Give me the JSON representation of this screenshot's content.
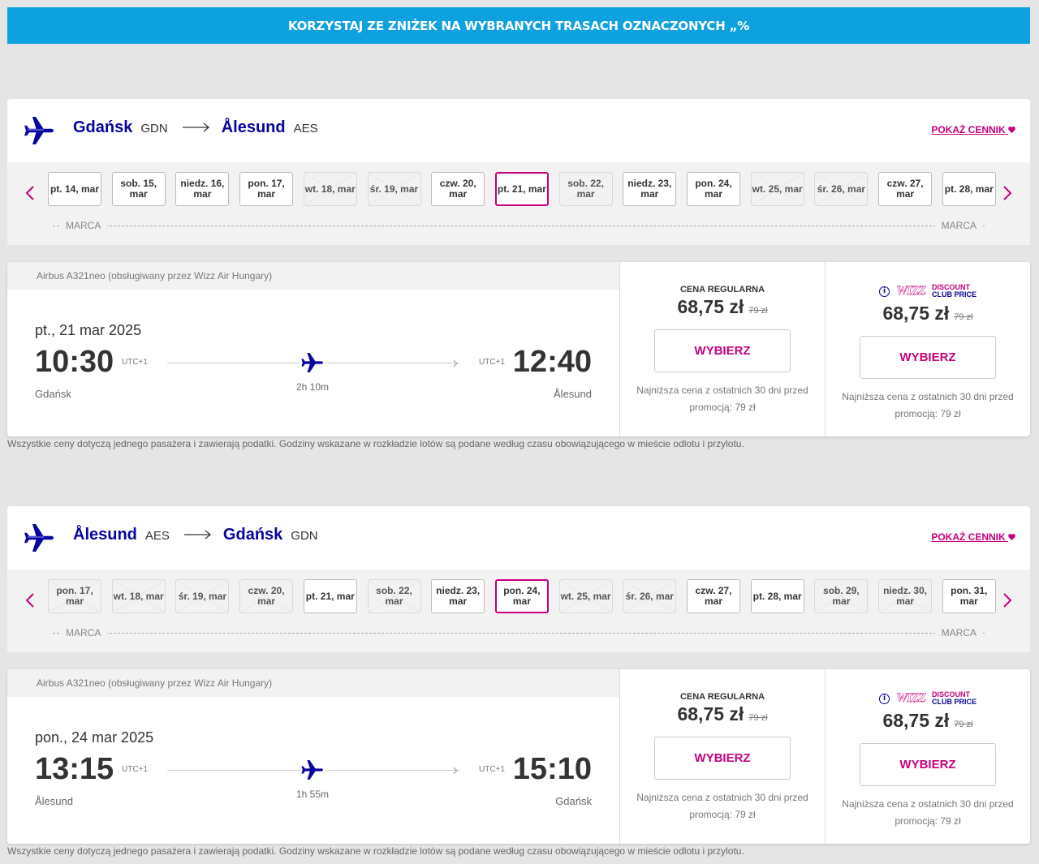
{
  "banner": {
    "text": "KORZYSTAJ ZE ZNIŻEK NA WYBRANYCH TRASACH OZNACZONYCH „%"
  },
  "routes": [
    {
      "origin_city": "Gdańsk",
      "origin_code": "GDN",
      "dest_city": "Ålesund",
      "dest_code": "AES",
      "fare_link": "POKAŻ CENNIK",
      "month_label_left": "MARCA",
      "month_label_right": "MARCA",
      "dates": [
        {
          "label": "pt. 14, mar",
          "state": "normal"
        },
        {
          "label": "sob. 15, mar",
          "state": "normal"
        },
        {
          "label": "niedz. 16, mar",
          "state": "normal"
        },
        {
          "label": "pon. 17, mar",
          "state": "normal"
        },
        {
          "label": "wt. 18, mar",
          "state": "disabled"
        },
        {
          "label": "śr. 19, mar",
          "state": "disabled"
        },
        {
          "label": "czw. 20, mar",
          "state": "normal"
        },
        {
          "label": "pt. 21, mar",
          "state": "selected"
        },
        {
          "label": "sob. 22, mar",
          "state": "disabled"
        },
        {
          "label": "niedz. 23, mar",
          "state": "normal"
        },
        {
          "label": "pon. 24, mar",
          "state": "normal"
        },
        {
          "label": "wt. 25, mar",
          "state": "disabled"
        },
        {
          "label": "śr. 26, mar",
          "state": "disabled"
        },
        {
          "label": "czw. 27, mar",
          "state": "normal"
        },
        {
          "label": "pt. 28, mar",
          "state": "normal"
        }
      ],
      "flight": {
        "aircraft": "Airbus A321neo (obsługiwany przez Wizz Air Hungary)",
        "date": "pt., 21 mar 2025",
        "dep_time": "10:30",
        "arr_time": "12:40",
        "dep_tz": "UTC+1",
        "arr_tz": "UTC+1",
        "duration": "2h 10m",
        "dep_city": "Gdańsk",
        "arr_city": "Ålesund",
        "regular_label": "CENA REGULARNA",
        "regular_price": "68,75 zł",
        "regular_old": "79 zł",
        "club_price": "68,75 zł",
        "club_old": "79 zł",
        "select_label": "WYBIERZ",
        "lowest_note": "Najniższa cena z ostatnich 30 dni przed promocją: 79 zł"
      },
      "footnote": "Wszystkie ceny dotyczą jednego pasażera i zawierają podatki. Godziny wskazane w rozkładzie lotów są podane według czasu obowiązującego w mieście odlotu i przylotu."
    },
    {
      "origin_city": "Ålesund",
      "origin_code": "AES",
      "dest_city": "Gdańsk",
      "dest_code": "GDN",
      "fare_link": "POKAŻ CENNIK",
      "month_label_left": "MARCA",
      "month_label_right": "MARCA",
      "dates": [
        {
          "label": "pon. 17, mar",
          "state": "disabled"
        },
        {
          "label": "wt. 18, mar",
          "state": "disabled"
        },
        {
          "label": "śr. 19, mar",
          "state": "disabled"
        },
        {
          "label": "czw. 20, mar",
          "state": "disabled"
        },
        {
          "label": "pt. 21, mar",
          "state": "normal"
        },
        {
          "label": "sob. 22, mar",
          "state": "disabled"
        },
        {
          "label": "niedz. 23, mar",
          "state": "normal"
        },
        {
          "label": "pon. 24, mar",
          "state": "selected"
        },
        {
          "label": "wt. 25, mar",
          "state": "disabled"
        },
        {
          "label": "śr. 26, mar",
          "state": "disabled"
        },
        {
          "label": "czw. 27, mar",
          "state": "normal"
        },
        {
          "label": "pt. 28, mar",
          "state": "normal"
        },
        {
          "label": "sob. 29, mar",
          "state": "disabled"
        },
        {
          "label": "niedz. 30, mar",
          "state": "disabled"
        },
        {
          "label": "pon. 31, mar",
          "state": "normal"
        }
      ],
      "flight": {
        "aircraft": "Airbus A321neo (obsługiwany przez Wizz Air Hungary)",
        "date": "pon., 24 mar 2025",
        "dep_time": "13:15",
        "arr_time": "15:10",
        "dep_tz": "UTC+1",
        "arr_tz": "UTC+1",
        "duration": "1h 55m",
        "dep_city": "Ålesund",
        "arr_city": "Gdańsk",
        "regular_label": "CENA REGULARNA",
        "regular_price": "68,75 zł",
        "regular_old": "79 zł",
        "club_price": "68,75 zł",
        "club_old": "79 zł",
        "select_label": "WYBIERZ",
        "lowest_note": "Najniższa cena z ostatnich 30 dni przed promocją: 79 zł"
      },
      "footnote": "Wszystkie ceny dotyczą jednego pasażera i zawierają podatki. Godziny wskazane w rozkładzie lotów są podane według czasu obowiązującego w mieście odlotu i przylotu."
    }
  ],
  "club": {
    "wizz": "WIZZ",
    "line1": "DISCOUNT",
    "line2": "CLUB PRICE",
    "info": "i"
  },
  "icons": {
    "plane": "plane-icon",
    "prev": "chevron-left-icon",
    "next": "chevron-right-icon",
    "heart": "heart-icon",
    "info": "info-icon"
  },
  "colors": {
    "accent": "#c6007e",
    "brand": "#06049f",
    "banner": "#0ea1e0"
  }
}
